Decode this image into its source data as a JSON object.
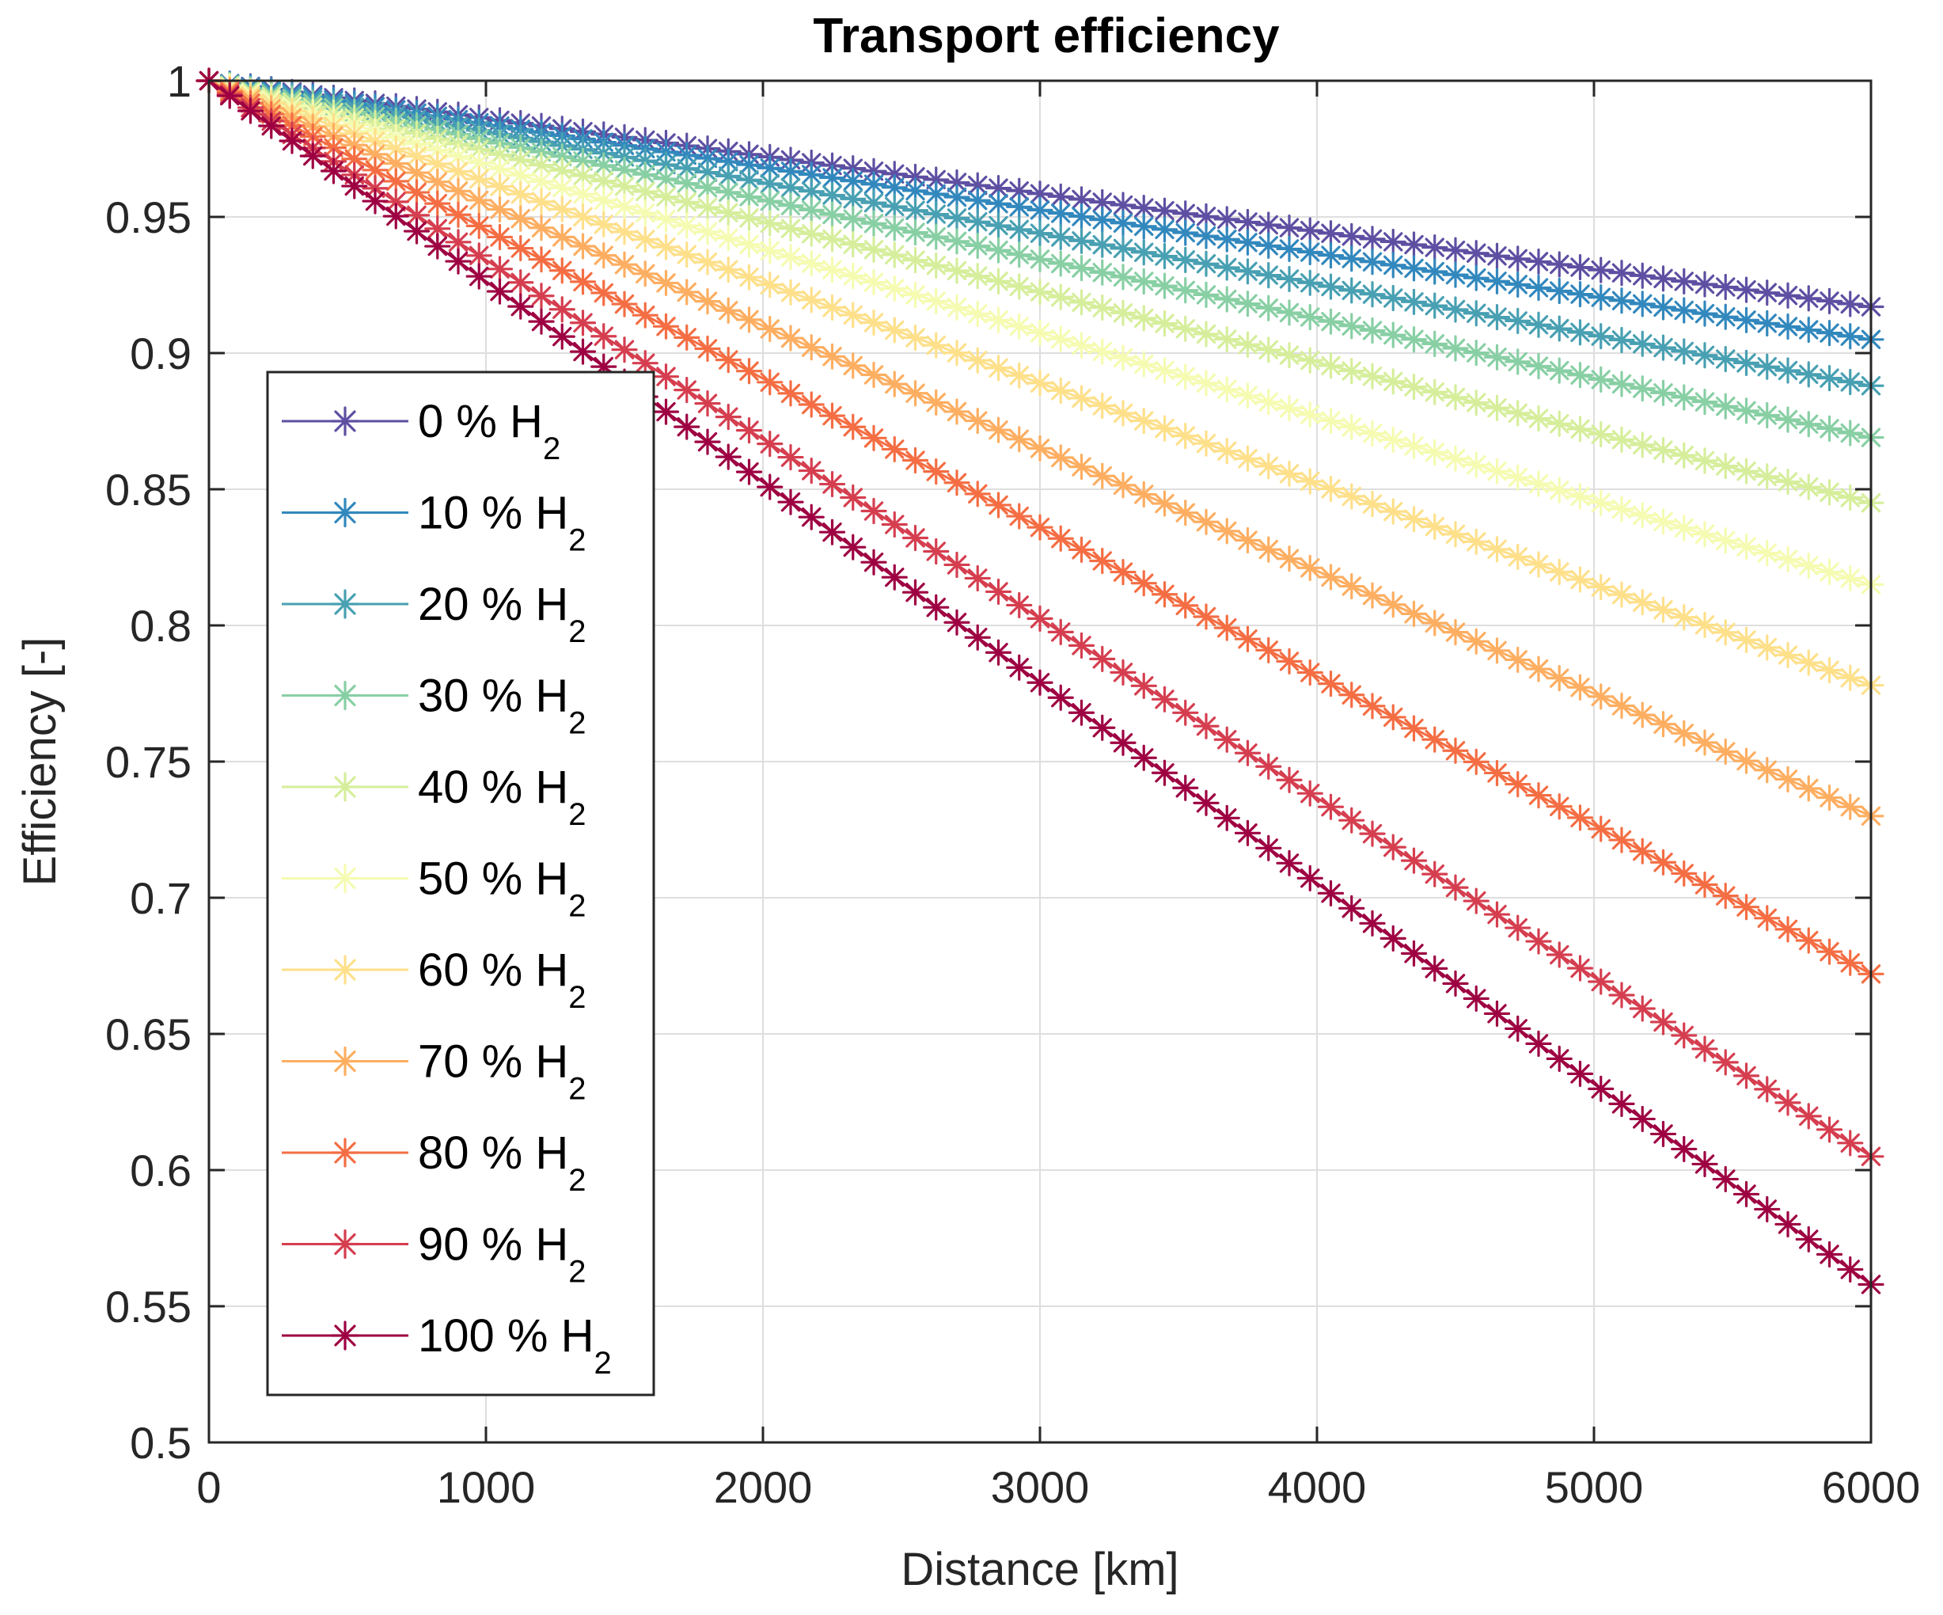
{
  "chart_data": {
    "type": "line",
    "title": "Transport efficiency",
    "xlabel": "Distance [km]",
    "ylabel": "Efficiency [-]",
    "xlim": [
      0,
      6000
    ],
    "ylim": [
      0.5,
      1
    ],
    "xticks": [
      "0",
      "1000",
      "2000",
      "3000",
      "4000",
      "5000",
      "6000"
    ],
    "yticks": [
      "0.5",
      "0.55",
      "0.6",
      "0.65",
      "0.7",
      "0.75",
      "0.8",
      "0.85",
      "0.9",
      "0.95",
      "1"
    ],
    "grid": true,
    "legend_position": "left",
    "marker": "asterisk",
    "x": [
      0,
      6000
    ],
    "series": [
      {
        "name": "0 % H",
        "subscript": "2",
        "color": "#5e4fa2",
        "values": [
          1,
          0.917
        ]
      },
      {
        "name": "10 % H",
        "subscript": "2",
        "color": "#3288bd",
        "values": [
          1,
          0.905
        ]
      },
      {
        "name": "20 % H",
        "subscript": "2",
        "color": "#48a0b2",
        "values": [
          1,
          0.888
        ]
      },
      {
        "name": "30 % H",
        "subscript": "2",
        "color": "#88cfa4",
        "values": [
          1,
          0.869
        ]
      },
      {
        "name": "40 % H",
        "subscript": "2",
        "color": "#d6ee9b",
        "values": [
          1,
          0.845
        ]
      },
      {
        "name": "50 % H",
        "subscript": "2",
        "color": "#f5fbb1",
        "values": [
          1,
          0.815
        ]
      },
      {
        "name": "60 % H",
        "subscript": "2",
        "color": "#fee08b",
        "values": [
          1,
          0.778
        ]
      },
      {
        "name": "70 % H",
        "subscript": "2",
        "color": "#fdae61",
        "values": [
          1,
          0.73
        ]
      },
      {
        "name": "80 % H",
        "subscript": "2",
        "color": "#f46d43",
        "values": [
          1,
          0.672
        ]
      },
      {
        "name": "90 % H",
        "subscript": "2",
        "color": "#d53e4f",
        "values": [
          1,
          0.605
        ]
      },
      {
        "name": "100 % H",
        "subscript": "2",
        "color": "#9e0142",
        "values": [
          1,
          0.558
        ]
      }
    ]
  }
}
